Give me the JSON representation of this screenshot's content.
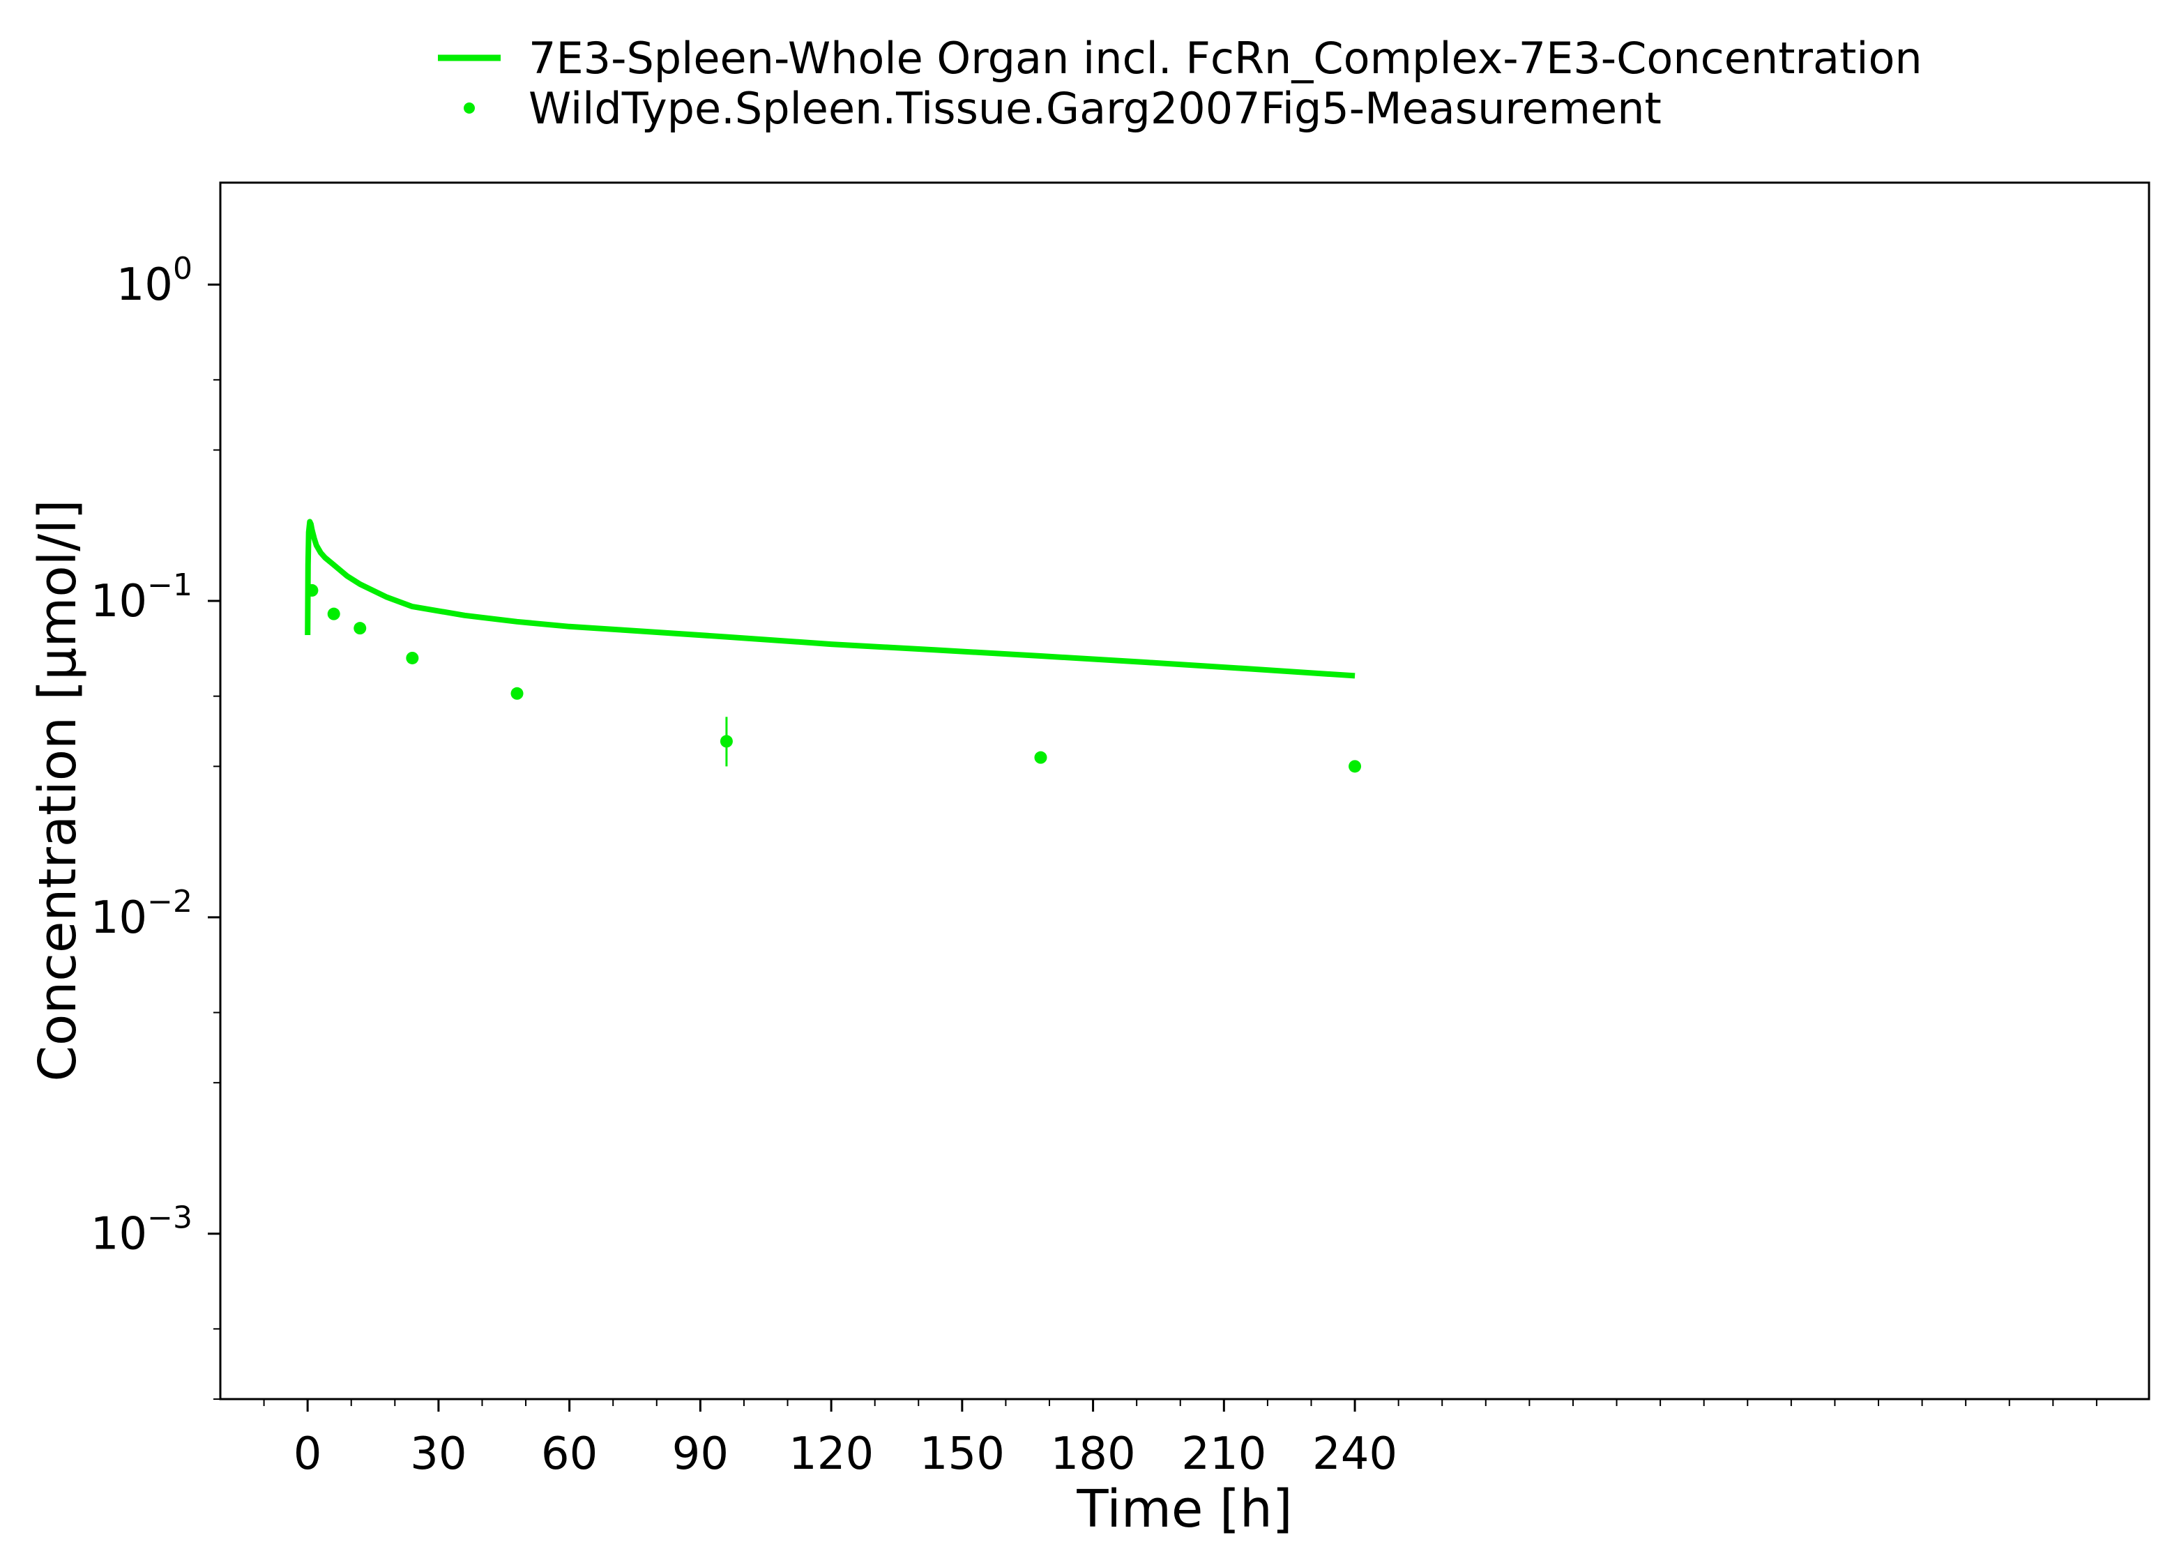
{
  "chart_data": {
    "type": "line",
    "title": "",
    "xlabel": "Time [h]",
    "ylabel": "Concentration [µmol/l]",
    "xlim": [
      -20,
      422
    ],
    "ylim": [
      0.0003,
      2.1
    ],
    "yscale": "log",
    "x_ticks": [
      0,
      30,
      60,
      90,
      120,
      150,
      180,
      210,
      240
    ],
    "x_tick_labels": [
      "0",
      "30",
      "60",
      "90",
      "120",
      "150",
      "180",
      "210",
      "240"
    ],
    "y_ticks": [
      {
        "value": 1,
        "base": "10",
        "exp": "0"
      },
      {
        "value": 0.1,
        "base": "10",
        "exp": "−1"
      },
      {
        "value": 0.01,
        "base": "10",
        "exp": "−2"
      },
      {
        "value": 0.001,
        "base": "10",
        "exp": "−3"
      }
    ],
    "grid": false,
    "legend_position": "top-center",
    "series": [
      {
        "name": "7E3-Spleen-Whole Organ incl. FcRn_Complex-7E3-Concentration",
        "type": "line",
        "color": "#00ee00",
        "x": [
          0,
          0.1,
          0.25,
          0.5,
          0.75,
          1,
          1.5,
          2,
          3,
          4,
          6,
          9,
          12,
          18,
          24,
          36,
          48,
          60,
          72,
          96,
          120,
          144,
          168,
          192,
          216,
          240
        ],
        "y": [
          0.078,
          0.13,
          0.165,
          0.178,
          0.175,
          0.168,
          0.158,
          0.15,
          0.142,
          0.137,
          0.13,
          0.12,
          0.113,
          0.103,
          0.096,
          0.09,
          0.086,
          0.083,
          0.081,
          0.077,
          0.073,
          0.07,
          0.067,
          0.064,
          0.061,
          0.058
        ]
      },
      {
        "name": "WildType.Spleen.Tissue.Garg2007Fig5-Measurement",
        "type": "scatter",
        "color": "#00ee00",
        "x": [
          1,
          6,
          12,
          24,
          48,
          96,
          168,
          240
        ],
        "y": [
          0.108,
          0.091,
          0.082,
          0.066,
          0.051,
          0.036,
          0.032,
          0.03
        ],
        "error_low": [
          null,
          null,
          null,
          null,
          null,
          0.03,
          null,
          null
        ],
        "error_high": [
          null,
          null,
          null,
          null,
          null,
          0.043,
          null,
          null
        ]
      }
    ]
  }
}
